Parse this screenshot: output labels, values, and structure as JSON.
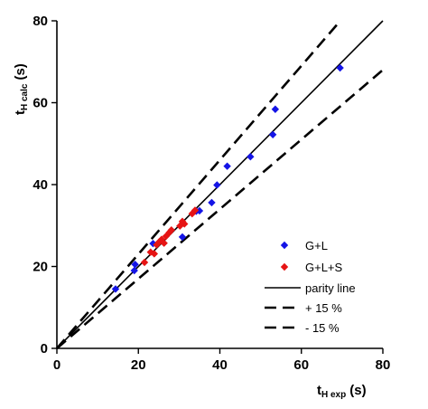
{
  "chart_data": {
    "type": "scatter",
    "xlabel": {
      "main": "t",
      "sub": "H exp",
      "unit": "(s)"
    },
    "ylabel": {
      "main": "t",
      "sub": "H calc",
      "unit": "(s)"
    },
    "xlim": [
      0,
      80
    ],
    "ylim": [
      0,
      80
    ],
    "xticks": [
      "0",
      "20",
      "40",
      "60",
      "80"
    ],
    "yticks": [
      "0",
      "20",
      "40",
      "60",
      "80"
    ],
    "grid": false,
    "legend_position": "right",
    "series": [
      {
        "name": "G+L",
        "marker": "diamond",
        "color": "#1414e6",
        "points": [
          [
            14.4,
            14.5
          ],
          [
            19.0,
            19.0
          ],
          [
            19.2,
            20.5
          ],
          [
            23.6,
            25.6
          ],
          [
            30.8,
            27.2
          ],
          [
            34.2,
            33.5
          ],
          [
            35.0,
            33.6
          ],
          [
            38.0,
            35.6
          ],
          [
            39.3,
            39.9
          ],
          [
            41.8,
            44.5
          ],
          [
            47.5,
            46.8
          ],
          [
            53.0,
            52.2
          ],
          [
            53.6,
            58.4
          ],
          [
            69.5,
            68.5
          ]
        ]
      },
      {
        "name": "G+L+S",
        "marker": "diamond",
        "color": "#e61414",
        "points": [
          [
            21.5,
            21.0
          ],
          [
            23.0,
            23.5
          ],
          [
            23.9,
            23.1
          ],
          [
            24.5,
            25.3
          ],
          [
            25.1,
            26.0
          ],
          [
            25.7,
            26.6
          ],
          [
            26.3,
            25.7
          ],
          [
            26.8,
            27.4
          ],
          [
            27.6,
            28.3
          ],
          [
            28.1,
            28.9
          ],
          [
            30.2,
            29.9
          ],
          [
            30.8,
            31.0
          ],
          [
            31.3,
            30.4
          ],
          [
            33.2,
            32.9
          ],
          [
            33.9,
            33.7
          ]
        ]
      }
    ],
    "lines": [
      {
        "name": "parity line",
        "style": "solid",
        "slope": 1.0
      },
      {
        "name": "+ 15 %",
        "style": "dashed",
        "slope": 1.15
      },
      {
        "name": "- 15 %",
        "style": "dashed",
        "slope": 0.85
      }
    ]
  }
}
